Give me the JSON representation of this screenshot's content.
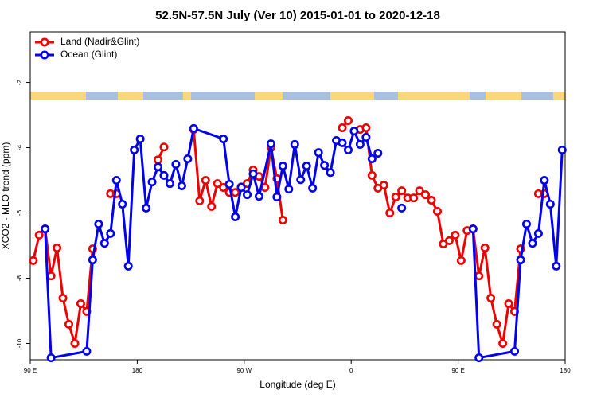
{
  "chart_data": {
    "type": "line",
    "title": "52.5N-57.5N July (Ver 10)   2015-01-01 to 2020-12-18",
    "x_label": "Longitude (deg E)",
    "y_label": "XCO2 - MLO trend (ppm)",
    "xlim": [
      90,
      540
    ],
    "xticks": [
      {
        "value": 90,
        "label": "90 E"
      },
      180,
      {
        "value": 270,
        "label": "90 W"
      },
      {
        "value": 360,
        "label": "0"
      },
      {
        "value": 450,
        "label": "90 E"
      },
      {
        "value": 540,
        "label": "180"
      }
    ],
    "ylim": [
      -10.5,
      -0.45
    ],
    "yticks": [
      -2,
      -4,
      -6,
      -8,
      -10
    ],
    "legend": "topleft",
    "series": [
      {
        "name": "Land (Nadir&Glint)",
        "color": "#ee0000",
        "x": [
          92.5,
          97.5,
          102.5,
          107.5,
          112.5,
          117.5,
          122.5,
          127.5,
          132.5,
          137.5,
          142.5,
          152.5,
          157.5,
          162.5,
          182.5,
          197.5,
          202.5,
          217.5,
          227.5,
          232.5,
          237.5,
          242.5,
          247.5,
          252.5,
          257.5,
          262.5,
          267.5,
          272.5,
          277.5,
          282.5,
          287.5,
          292.5,
          297.5,
          302.5,
          327.5,
          352.5,
          357.5,
          362.5,
          367.5,
          372.5,
          377.5,
          382.5,
          387.5,
          392.5,
          397.5,
          402.5,
          407.5,
          412.5,
          417.5,
          422.5,
          427.5,
          432.5,
          437.5,
          442.5,
          447.5,
          452.5,
          457.5,
          462.5,
          467.5,
          472.5,
          477.5,
          482.5,
          487.5,
          492.5,
          497.5,
          502.5,
          512.5,
          517.5,
          522.5
        ],
        "values": [
          -7.46,
          -6.68,
          -6.49,
          -7.93,
          -7.07,
          -8.61,
          -9.41,
          -10.0,
          -8.78,
          -9.02,
          -7.1,
          null,
          -5.41,
          -5.41,
          null,
          -4.37,
          -3.98,
          null,
          -3.44,
          -5.63,
          -5.0,
          -5.8,
          -5.1,
          -5.22,
          -5.37,
          -5.37,
          -5.2,
          -5.1,
          -4.68,
          -4.88,
          -5.22,
          -4.0,
          -4.95,
          -6.22,
          null,
          -3.39,
          -3.17,
          null,
          -3.44,
          -3.39,
          -4.85,
          -5.24,
          -5.15,
          -6.0,
          -5.51,
          -5.32,
          -5.54,
          -5.54,
          -5.32,
          -5.44,
          -5.61,
          -5.95,
          -6.95,
          -6.85,
          -6.68,
          -7.46,
          -6.54,
          -6.49,
          -7.93,
          -7.07,
          -8.61,
          -9.41,
          -10.0,
          -8.78,
          -9.02,
          -7.1,
          null,
          -5.41,
          -5.41
        ]
      },
      {
        "name": "Ocean (Glint)",
        "color": "#0000ee",
        "x": [
          102.5,
          107.5,
          137.5,
          142.5,
          147.5,
          152.5,
          157.5,
          162.5,
          167.5,
          172.5,
          177.5,
          182.5,
          187.5,
          192.5,
          197.5,
          202.5,
          207.5,
          212.5,
          217.5,
          222.5,
          227.5,
          252.5,
          257.5,
          262.5,
          267.5,
          272.5,
          277.5,
          282.5,
          292.5,
          297.5,
          302.5,
          307.5,
          312.5,
          317.5,
          322.5,
          327.5,
          332.5,
          337.5,
          342.5,
          347.5,
          352.5,
          357.5,
          362.5,
          367.5,
          372.5,
          377.5,
          382.5,
          392.5,
          402.5,
          432.5,
          462.5,
          467.5,
          497.5,
          502.5,
          507.5,
          512.5,
          517.5,
          522.5,
          527.5,
          532.5,
          537.5
        ],
        "values": [
          -6.49,
          -10.44,
          -10.24,
          -7.44,
          -6.34,
          -6.93,
          -6.63,
          -5.0,
          -5.73,
          -7.63,
          -4.07,
          -3.73,
          -5.85,
          -5.05,
          -4.59,
          -4.85,
          -5.1,
          -4.51,
          -5.17,
          -4.34,
          -3.41,
          -3.73,
          -5.12,
          -6.12,
          -5.22,
          -5.44,
          -4.8,
          -5.49,
          -3.88,
          -5.51,
          -4.56,
          -5.27,
          -3.9,
          -4.98,
          -4.56,
          -5.24,
          -4.15,
          -4.54,
          -4.76,
          -3.78,
          -3.85,
          -4.07,
          -3.49,
          -3.9,
          -3.68,
          -4.34,
          -4.17,
          null,
          -5.85,
          null,
          -6.49,
          -10.44,
          -10.24,
          -7.44,
          -6.34,
          -6.93,
          -6.63,
          -5.0,
          -5.73,
          -7.63,
          -4.07
        ]
      }
    ]
  }
}
